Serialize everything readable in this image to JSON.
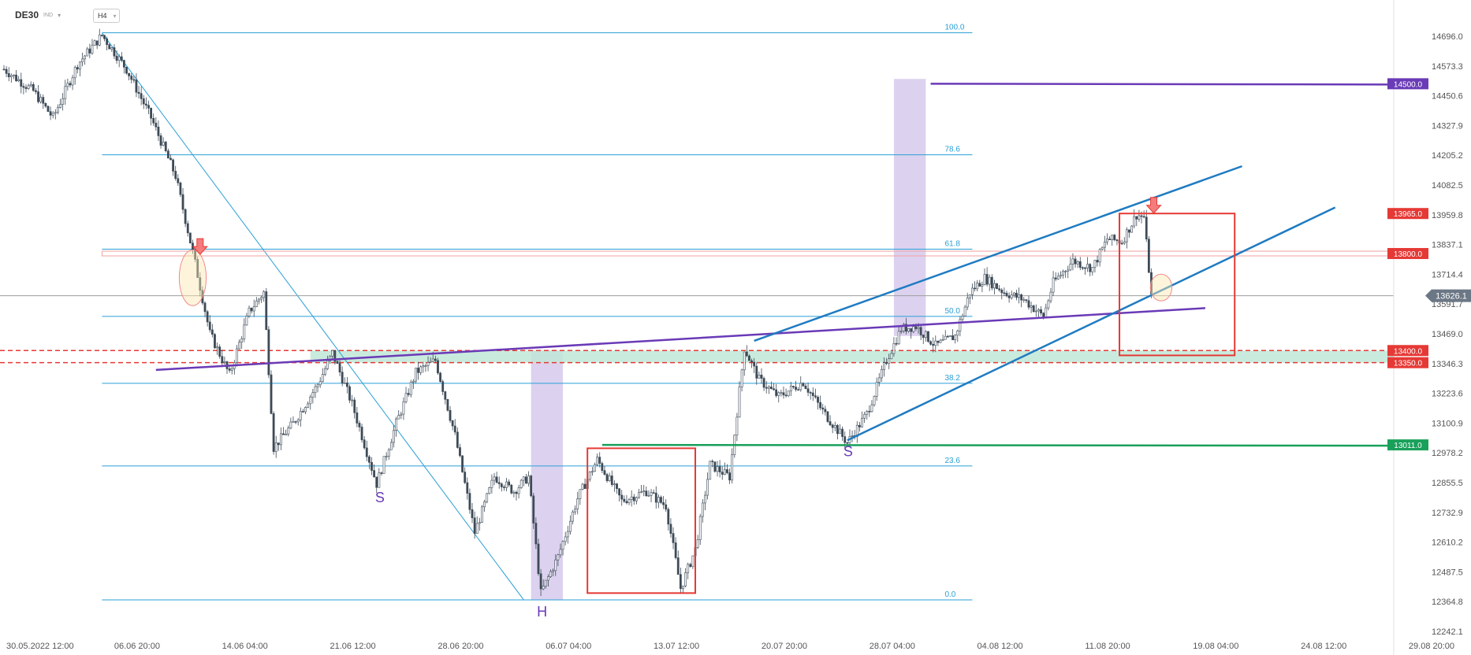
{
  "header": {
    "symbol": "DE30",
    "exchange": "IND",
    "timeframe": "H4"
  },
  "chart_data": {
    "type": "candlestick",
    "title": "",
    "ylim": [
      12242.1,
      14750
    ],
    "y_ticks": [
      "14696.0",
      "14573.3",
      "14450.6",
      "14327.9",
      "14205.2",
      "14082.5",
      "13959.8",
      "13837.1",
      "13714.4",
      "13591.7",
      "13469.0",
      "13346.3",
      "13223.6",
      "13100.9",
      "12978.2",
      "12855.5",
      "12732.9",
      "12610.2",
      "12487.5",
      "12364.8",
      "12242.1"
    ],
    "x_ticks": [
      "30.05.2022 12:00",
      "06.06 20:00",
      "14.06 04:00",
      "21.06 12:00",
      "28.06 20:00",
      "06.07 04:00",
      "13.07 12:00",
      "20.07 20:00",
      "28.07 04:00",
      "04.08 12:00",
      "11.08 20:00",
      "19.08 04:00",
      "24.08 12:00",
      "29.08 20:00"
    ],
    "x_ticks_bar_index": [
      0,
      44,
      88,
      132,
      176,
      220,
      264,
      308,
      352,
      396,
      440,
      484,
      528,
      572
    ],
    "last_bar_index": 468,
    "current_price": "13626.1",
    "price_tags": [
      {
        "label": "14500.0",
        "value": 14500,
        "color": "#6a3ab7"
      },
      {
        "label": "13965.0",
        "value": 13965,
        "color": "#e53935"
      },
      {
        "label": "13800.0",
        "value": 13800,
        "color": "#e53935"
      },
      {
        "label": "13400.0",
        "value": 13400,
        "color": "#e53935"
      },
      {
        "label": "13350.0",
        "value": 13350,
        "color": "#e53935"
      },
      {
        "label": "13011.0",
        "value": 13011,
        "color": "#19a05a"
      }
    ],
    "fibonacci": {
      "high": 14710,
      "low": 12372,
      "start_bar": 40,
      "end_bar": 395,
      "levels": [
        {
          "label": "100.0",
          "value": 14710
        },
        {
          "label": "78.6",
          "value": 14207
        },
        {
          "label": "61.8",
          "value": 13818
        },
        {
          "label": "50.0",
          "value": 13541
        },
        {
          "label": "38.2",
          "value": 13265
        },
        {
          "label": "23.6",
          "value": 12924
        },
        {
          "label": "0.0",
          "value": 12372
        }
      ]
    },
    "pattern_labels": [
      {
        "text": "S",
        "bar": 153,
        "value": 12800
      },
      {
        "text": "H",
        "bar": 219,
        "value": 12330
      },
      {
        "text": "S",
        "bar": 344,
        "value": 12990
      }
    ],
    "series": [
      {
        "name": "",
        "key_points": [
          {
            "bar": 0,
            "value": 14560
          },
          {
            "bar": 12,
            "value": 14470
          },
          {
            "bar": 20,
            "value": 14360
          },
          {
            "bar": 30,
            "value": 14580
          },
          {
            "bar": 40,
            "value": 14700
          },
          {
            "bar": 50,
            "value": 14560
          },
          {
            "bar": 60,
            "value": 14360
          },
          {
            "bar": 70,
            "value": 14120
          },
          {
            "bar": 78,
            "value": 13760
          },
          {
            "bar": 84,
            "value": 13470
          },
          {
            "bar": 92,
            "value": 13300
          },
          {
            "bar": 100,
            "value": 13560
          },
          {
            "bar": 106,
            "value": 13640
          },
          {
            "bar": 110,
            "value": 13000
          },
          {
            "bar": 118,
            "value": 13100
          },
          {
            "bar": 128,
            "value": 13260
          },
          {
            "bar": 134,
            "value": 13390
          },
          {
            "bar": 142,
            "value": 13180
          },
          {
            "bar": 152,
            "value": 12850
          },
          {
            "bar": 160,
            "value": 13100
          },
          {
            "bar": 168,
            "value": 13310
          },
          {
            "bar": 176,
            "value": 13360
          },
          {
            "bar": 184,
            "value": 13050
          },
          {
            "bar": 192,
            "value": 12650
          },
          {
            "bar": 200,
            "value": 12880
          },
          {
            "bar": 208,
            "value": 12820
          },
          {
            "bar": 214,
            "value": 12880
          },
          {
            "bar": 219,
            "value": 12400
          },
          {
            "bar": 226,
            "value": 12550
          },
          {
            "bar": 234,
            "value": 12790
          },
          {
            "bar": 242,
            "value": 12950
          },
          {
            "bar": 252,
            "value": 12780
          },
          {
            "bar": 262,
            "value": 12820
          },
          {
            "bar": 270,
            "value": 12760
          },
          {
            "bar": 276,
            "value": 12420
          },
          {
            "bar": 282,
            "value": 12580
          },
          {
            "bar": 288,
            "value": 12930
          },
          {
            "bar": 296,
            "value": 12880
          },
          {
            "bar": 302,
            "value": 13410
          },
          {
            "bar": 308,
            "value": 13280
          },
          {
            "bar": 316,
            "value": 13210
          },
          {
            "bar": 326,
            "value": 13270
          },
          {
            "bar": 334,
            "value": 13150
          },
          {
            "bar": 344,
            "value": 13020
          },
          {
            "bar": 352,
            "value": 13140
          },
          {
            "bar": 360,
            "value": 13360
          },
          {
            "bar": 366,
            "value": 13490
          },
          {
            "bar": 372,
            "value": 13500
          },
          {
            "bar": 380,
            "value": 13420
          },
          {
            "bar": 388,
            "value": 13460
          },
          {
            "bar": 394,
            "value": 13640
          },
          {
            "bar": 400,
            "value": 13700
          },
          {
            "bar": 408,
            "value": 13640
          },
          {
            "bar": 416,
            "value": 13610
          },
          {
            "bar": 424,
            "value": 13540
          },
          {
            "bar": 428,
            "value": 13680
          },
          {
            "bar": 436,
            "value": 13770
          },
          {
            "bar": 444,
            "value": 13740
          },
          {
            "bar": 450,
            "value": 13860
          },
          {
            "bar": 456,
            "value": 13850
          },
          {
            "bar": 462,
            "value": 13960
          },
          {
            "bar": 465,
            "value": 13950
          },
          {
            "bar": 468,
            "value": 13626
          }
        ]
      }
    ],
    "annotations": {
      "purple_line": {
        "value": 14500,
        "from_bar": 378
      },
      "green_line": {
        "value": 13011,
        "from_bar": 244
      },
      "red_level_line": {
        "value": 13800,
        "from_bar": 40
      },
      "red_dashed": [
        13400,
        13350
      ],
      "green_zone": {
        "high": 13400,
        "low": 13350,
        "from_bar": 125
      },
      "purple_trendline": {
        "from": {
          "bar": 62,
          "value": 13320
        },
        "to": {
          "bar": 490,
          "value": 13575
        }
      },
      "blue_channel_upper": {
        "from": {
          "bar": 306,
          "value": 13440
        },
        "to": {
          "bar": 505,
          "value": 14160
        }
      },
      "blue_channel_lower": {
        "from": {
          "bar": 344,
          "value": 13030
        },
        "to": {
          "bar": 543,
          "value": 13990
        }
      },
      "fib_diagonal": {
        "from": {
          "bar": 40,
          "value": 14710
        },
        "to": {
          "bar": 212,
          "value": 12372
        }
      },
      "vertical_zones": [
        {
          "from_bar": 215,
          "to_bar": 228,
          "high": 13400,
          "low": 12372
        },
        {
          "from_bar": 363,
          "to_bar": 376,
          "high": 14520,
          "low": 13460
        }
      ],
      "red_boxes": [
        {
          "from_bar": 238,
          "to_bar": 282,
          "high": 12997,
          "low": 12400
        },
        {
          "from_bar": 455,
          "to_bar": 502,
          "high": 13965,
          "low": 13380
        }
      ],
      "ellipses": [
        {
          "bar": 77,
          "value": 13700,
          "rx_bars": 5,
          "ry_value": 115
        },
        {
          "bar": 472,
          "value": 13660,
          "rx_bars": 4,
          "ry_value": 55
        }
      ],
      "down_arrows": [
        {
          "bar": 80,
          "value": 13790
        },
        {
          "bar": 469,
          "value": 13960
        }
      ]
    }
  }
}
